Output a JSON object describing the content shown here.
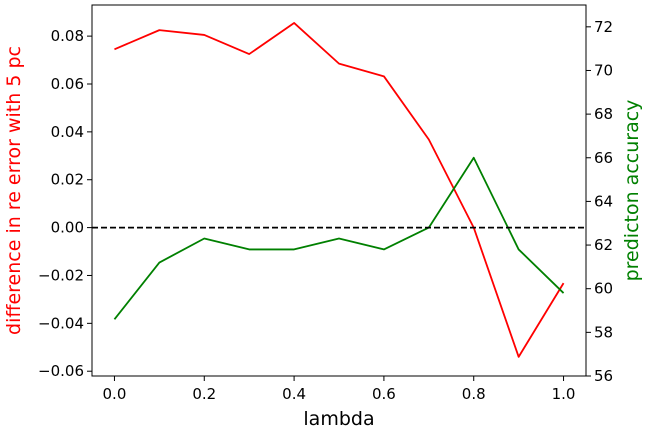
{
  "chart_data": {
    "type": "line",
    "title": "",
    "xlabel": "lambda",
    "xlim": [
      -0.05,
      1.05
    ],
    "xticks": [
      0.0,
      0.2,
      0.4,
      0.6,
      0.8,
      1.0
    ],
    "xtick_labels": [
      "0.0",
      "0.2",
      "0.4",
      "0.6",
      "0.8",
      "1.0"
    ],
    "x": [
      0.0,
      0.1,
      0.2,
      0.3,
      0.4,
      0.5,
      0.6,
      0.7,
      0.8,
      0.9,
      1.0
    ],
    "left_axis": {
      "label": "difference in re error with 5 pc",
      "color": "#ff0000",
      "ylim": [
        -0.062,
        0.093
      ],
      "ticks": [
        -0.06,
        -0.04,
        -0.02,
        0.0,
        0.02,
        0.04,
        0.06,
        0.08
      ],
      "tick_labels": [
        "−0.06",
        "−0.04",
        "−0.02",
        "0.00",
        "0.02",
        "0.04",
        "0.06",
        "0.08"
      ]
    },
    "right_axis": {
      "label": "predicton accuracy",
      "color": "#008000",
      "ylim": [
        56,
        73
      ],
      "ticks": [
        56,
        58,
        60,
        62,
        64,
        66,
        68,
        70,
        72
      ],
      "tick_labels": [
        "56",
        "58",
        "60",
        "62",
        "64",
        "66",
        "68",
        "70",
        "72"
      ]
    },
    "series": [
      {
        "axis": "left",
        "color": "#ff0000",
        "values": [
          0.0745,
          0.0825,
          0.0805,
          0.0725,
          0.0855,
          0.0685,
          0.0632,
          0.0368,
          0.0,
          -0.054,
          -0.0232
        ]
      },
      {
        "axis": "right",
        "color": "#008000",
        "values": [
          58.6,
          61.2,
          62.3,
          61.8,
          61.8,
          62.3,
          61.8,
          62.8,
          66.0,
          61.8,
          59.8
        ]
      }
    ],
    "reference_line": {
      "axis": "left",
      "y": 0.0,
      "style": "dashed",
      "color": "#000000"
    },
    "grid": false
  }
}
